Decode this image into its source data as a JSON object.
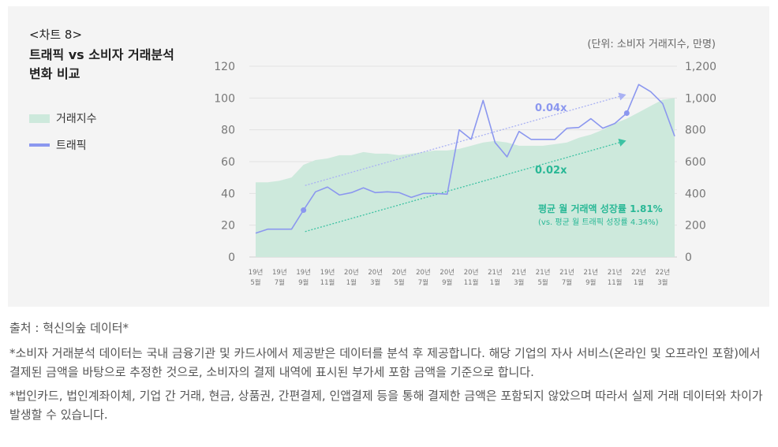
{
  "chart_data": {
    "type": "line",
    "tag": "<차트 8>",
    "title_line1": "트래픽 vs 소비자 거래분석",
    "title_line2": "변화 비교",
    "unit_label": "(단위: 소비자 거래지수, 만명)",
    "left_ticks": [
      "0",
      "20",
      "40",
      "60",
      "80",
      "100",
      "120"
    ],
    "right_ticks": [
      "0",
      "200",
      "400",
      "600",
      "800",
      "1,000",
      "1,200"
    ],
    "ylim_left": [
      0,
      120
    ],
    "ylim_right": [
      0,
      1200
    ],
    "x_labels": [
      [
        "19년",
        "5월"
      ],
      [
        "19년",
        "7월"
      ],
      [
        "19년",
        "9월"
      ],
      [
        "19년",
        "11월"
      ],
      [
        "20년",
        "1월"
      ],
      [
        "20년",
        "3월"
      ],
      [
        "20년",
        "5월"
      ],
      [
        "20년",
        "7월"
      ],
      [
        "20년",
        "9월"
      ],
      [
        "20년",
        "11월"
      ],
      [
        "21년",
        "1월"
      ],
      [
        "21년",
        "3월"
      ],
      [
        "21년",
        "5월"
      ],
      [
        "21년",
        "7월"
      ],
      [
        "21년",
        "9월"
      ],
      [
        "21년",
        "11월"
      ],
      [
        "22년",
        "1월"
      ],
      [
        "22년",
        "3월"
      ]
    ],
    "series": [
      {
        "name": "거래지수",
        "kind": "area",
        "axis": "left",
        "color": "#cde9dc",
        "values": [
          47,
          47,
          48,
          50,
          58,
          61,
          62,
          64,
          64,
          66,
          65,
          65,
          64,
          65,
          66,
          67,
          67,
          68,
          70,
          72,
          73,
          72,
          70,
          70,
          70,
          71,
          72,
          75,
          77,
          80,
          84,
          87,
          91,
          95,
          99,
          100
        ]
      },
      {
        "name": "트래픽",
        "kind": "line",
        "axis": "right",
        "color": "#8b97ef",
        "values": [
          150,
          175,
          175,
          175,
          295,
          410,
          440,
          390,
          405,
          435,
          405,
          410,
          405,
          375,
          400,
          400,
          395,
          800,
          740,
          985,
          720,
          630,
          790,
          740,
          740,
          740,
          810,
          815,
          870,
          810,
          840,
          905,
          1085,
          1040,
          965,
          760
        ]
      }
    ],
    "trend_lines": [
      {
        "label": "0.04x",
        "color": "#a9b1f3",
        "label_color": "#8b97ef",
        "from_index": 4,
        "to_index": 31,
        "from_value": 450,
        "to_value": 1020
      },
      {
        "label": "0.02x",
        "color": "#3cc2a3",
        "label_color": "#29b896",
        "from_index": 4,
        "to_index": 31,
        "from_value": 160,
        "to_value": 730
      }
    ],
    "highlight_points": [
      {
        "index": 4,
        "value": 295
      },
      {
        "index": 31,
        "value": 905
      }
    ],
    "annotation": {
      "line1": "평균 월 거래액 성장률 1.81%",
      "line2": "(vs. 평균 월 트래픽 성장률 4.34%)",
      "color": "#29b896"
    },
    "legend": [
      "거래지수",
      "트래픽"
    ]
  },
  "footer": {
    "source": "출처 : 혁신의숲 데이터*",
    "note1": "*소비자 거래분석 데이터는 국내 금융기관 및 카드사에서 제공받은 데이터를 분석 후 제공합니다. 해당 기업의 자사 서비스(온라인 및 오프라인 포함)에서 결제된 금액을 바탕으로 추정한 것으로, 소비자의 결제 내역에 표시된 부가세 포함 금액을 기준으로 합니다.",
    "note2": "*법인카드, 법인계좌이체, 기업 간 거래, 현금, 상품권, 간편결제, 인앱결제 등을 통해 결제한 금액은 포함되지 않았으며 따라서 실제 거래 데이터와 차이가 발생할 수 있습니다."
  }
}
